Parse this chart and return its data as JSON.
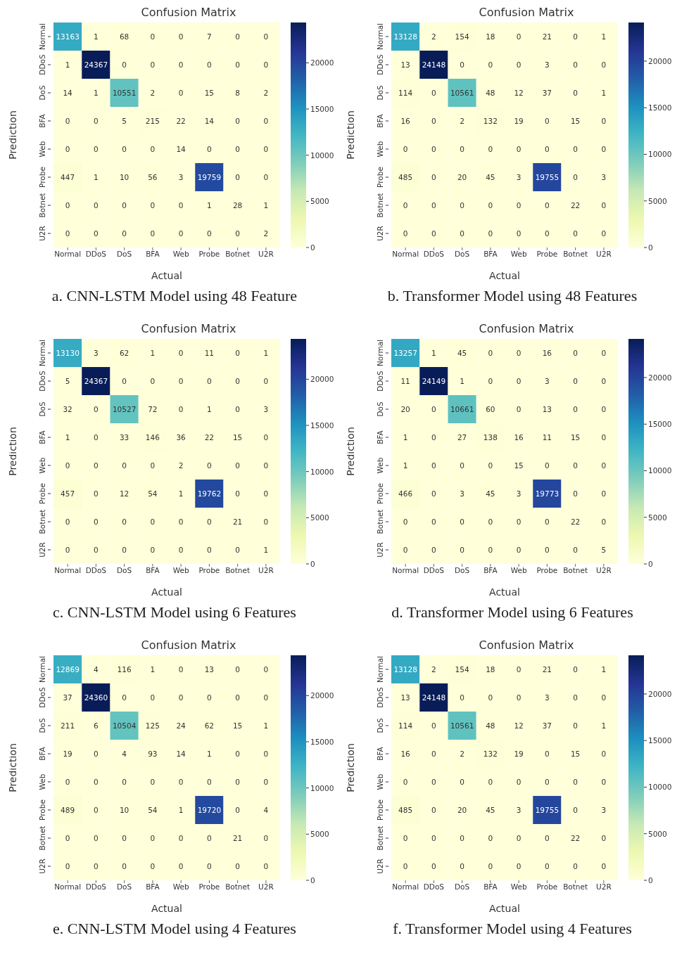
{
  "chart_data": [
    {
      "type": "heatmap",
      "title": "Confusion Matrix",
      "xlabel": "Actual",
      "ylabel": "Prediction",
      "categories": [
        "Normal",
        "DDoS",
        "DoS",
        "BFA",
        "Web",
        "Probe",
        "Botnet",
        "U2R"
      ],
      "y_categories": [
        "Normal",
        "DDoS",
        "DoS",
        "BFA",
        "Web",
        "Probe",
        "Botnet",
        "U2R"
      ],
      "cells": [
        [
          13163,
          1,
          68,
          0,
          0,
          7,
          0,
          0
        ],
        [
          1,
          24367,
          0,
          0,
          0,
          0,
          0,
          0
        ],
        [
          14,
          1,
          10551,
          2,
          0,
          15,
          8,
          2
        ],
        [
          0,
          0,
          5,
          215,
          22,
          14,
          0,
          0
        ],
        [
          0,
          0,
          0,
          0,
          14,
          0,
          0,
          0
        ],
        [
          447,
          1,
          10,
          56,
          3,
          19759,
          0,
          0
        ],
        [
          0,
          0,
          0,
          0,
          0,
          1,
          28,
          1
        ],
        [
          0,
          0,
          0,
          0,
          0,
          0,
          0,
          2
        ]
      ],
      "clim": [
        0,
        24367
      ],
      "cticks": [
        0,
        5000,
        10000,
        15000,
        20000
      ],
      "data_labels": true,
      "annotations": [
        "a. CNN-LSTM Model using 48 Feature"
      ]
    },
    {
      "type": "heatmap",
      "title": "Confusion Matrix",
      "xlabel": "Actual",
      "ylabel": "Prediction",
      "categories": [
        "Normal",
        "DDoS",
        "DoS",
        "BFA",
        "Web",
        "Probe",
        "Botnet",
        "U2R"
      ],
      "y_categories": [
        "Normal",
        "DDoS",
        "DoS",
        "BFA",
        "Web",
        "Probe",
        "Botnet",
        "U2R"
      ],
      "cells": [
        [
          13128,
          2,
          154,
          18,
          0,
          21,
          0,
          1
        ],
        [
          13,
          24148,
          0,
          0,
          0,
          3,
          0,
          0
        ],
        [
          114,
          0,
          10561,
          48,
          12,
          37,
          0,
          1
        ],
        [
          16,
          0,
          2,
          132,
          19,
          0,
          15,
          0
        ],
        [
          0,
          0,
          0,
          0,
          0,
          0,
          0,
          0
        ],
        [
          485,
          0,
          20,
          45,
          3,
          19755,
          0,
          3
        ],
        [
          0,
          0,
          0,
          0,
          0,
          0,
          22,
          0
        ],
        [
          0,
          0,
          0,
          0,
          0,
          0,
          0,
          0
        ]
      ],
      "clim": [
        0,
        24148
      ],
      "cticks": [
        0,
        5000,
        10000,
        15000,
        20000
      ],
      "data_labels": true,
      "annotations": [
        "b. Transformer Model using 48 Features"
      ]
    },
    {
      "type": "heatmap",
      "title": "Confusion Matrix",
      "xlabel": "Actual",
      "ylabel": "Prediction",
      "categories": [
        "Normal",
        "DDoS",
        "DoS",
        "BFA",
        "Web",
        "Probe",
        "Botnet",
        "U2R"
      ],
      "y_categories": [
        "Normal",
        "DDoS",
        "DoS",
        "BFA",
        "Web",
        "Probe",
        "Botnet",
        "U2R"
      ],
      "cells": [
        [
          13130,
          3,
          62,
          1,
          0,
          11,
          0,
          1
        ],
        [
          5,
          24367,
          0,
          0,
          0,
          0,
          0,
          0
        ],
        [
          32,
          0,
          10527,
          72,
          0,
          1,
          0,
          3
        ],
        [
          1,
          0,
          33,
          146,
          36,
          22,
          15,
          0
        ],
        [
          0,
          0,
          0,
          0,
          2,
          0,
          0,
          0
        ],
        [
          457,
          0,
          12,
          54,
          1,
          19762,
          0,
          0
        ],
        [
          0,
          0,
          0,
          0,
          0,
          0,
          21,
          0
        ],
        [
          0,
          0,
          0,
          0,
          0,
          0,
          0,
          1
        ]
      ],
      "clim": [
        0,
        24367
      ],
      "cticks": [
        0,
        5000,
        10000,
        15000,
        20000
      ],
      "data_labels": true,
      "annotations": [
        "c. CNN-LSTM Model using 6 Features"
      ]
    },
    {
      "type": "heatmap",
      "title": "Confusion Matrix",
      "xlabel": "Actual",
      "ylabel": "Prediction",
      "categories": [
        "Normal",
        "DDoS",
        "DoS",
        "BFA",
        "Web",
        "Probe",
        "Botnet",
        "U2R"
      ],
      "y_categories": [
        "Normal",
        "DDoS",
        "DoS",
        "BFA",
        "Web",
        "Probe",
        "Botnet",
        "U2R"
      ],
      "cells": [
        [
          13257,
          1,
          45,
          0,
          0,
          16,
          0,
          0
        ],
        [
          11,
          24149,
          1,
          0,
          0,
          3,
          0,
          0
        ],
        [
          20,
          0,
          10661,
          60,
          0,
          13,
          0,
          0
        ],
        [
          1,
          0,
          27,
          138,
          16,
          11,
          15,
          0
        ],
        [
          1,
          0,
          0,
          0,
          15,
          0,
          0,
          0
        ],
        [
          466,
          0,
          3,
          45,
          3,
          19773,
          0,
          0
        ],
        [
          0,
          0,
          0,
          0,
          0,
          0,
          22,
          0
        ],
        [
          0,
          0,
          0,
          0,
          0,
          0,
          0,
          5
        ]
      ],
      "clim": [
        0,
        24149
      ],
      "cticks": [
        0,
        5000,
        10000,
        15000,
        20000
      ],
      "data_labels": true,
      "annotations": [
        "d. Transformer Model using 6 Features"
      ]
    },
    {
      "type": "heatmap",
      "title": "Confusion Matrix",
      "xlabel": "Actual",
      "ylabel": "Prediction",
      "categories": [
        "Normal",
        "DDoS",
        "DoS",
        "BFA",
        "Web",
        "Probe",
        "Botnet",
        "U2R"
      ],
      "y_categories": [
        "Normal",
        "DDoS",
        "DoS",
        "BFA",
        "Web",
        "Probe",
        "Botnet",
        "U2R"
      ],
      "cells": [
        [
          12869,
          4,
          116,
          1,
          0,
          13,
          0,
          0
        ],
        [
          37,
          24360,
          0,
          0,
          0,
          0,
          0,
          0
        ],
        [
          211,
          6,
          10504,
          125,
          24,
          62,
          15,
          1
        ],
        [
          19,
          0,
          4,
          93,
          14,
          1,
          0,
          0
        ],
        [
          0,
          0,
          0,
          0,
          0,
          0,
          0,
          0
        ],
        [
          489,
          0,
          10,
          54,
          1,
          19720,
          0,
          4
        ],
        [
          0,
          0,
          0,
          0,
          0,
          0,
          21,
          0
        ],
        [
          0,
          0,
          0,
          0,
          0,
          0,
          0,
          0
        ]
      ],
      "clim": [
        0,
        24360
      ],
      "cticks": [
        0,
        5000,
        10000,
        15000,
        20000
      ],
      "data_labels": true,
      "annotations": [
        "e. CNN-LSTM Model using 4 Features"
      ]
    },
    {
      "type": "heatmap",
      "title": "Confusion Matrix",
      "xlabel": "Actual",
      "ylabel": "Prediction",
      "categories": [
        "Normal",
        "DDoS",
        "DoS",
        "BFA",
        "Web",
        "Probe",
        "Botnet",
        "U2R"
      ],
      "y_categories": [
        "Normal",
        "DDoS",
        "DoS",
        "BFA",
        "Web",
        "Probe",
        "Botnet",
        "U2R"
      ],
      "cells": [
        [
          13128,
          2,
          154,
          18,
          0,
          21,
          0,
          1
        ],
        [
          13,
          24148,
          0,
          0,
          0,
          3,
          0,
          0
        ],
        [
          114,
          0,
          10561,
          48,
          12,
          37,
          0,
          1
        ],
        [
          16,
          0,
          2,
          132,
          19,
          0,
          15,
          0
        ],
        [
          0,
          0,
          0,
          0,
          0,
          0,
          0,
          0
        ],
        [
          485,
          0,
          20,
          45,
          3,
          19755,
          0,
          3
        ],
        [
          0,
          0,
          0,
          0,
          0,
          0,
          22,
          0
        ],
        [
          0,
          0,
          0,
          0,
          0,
          0,
          0,
          0
        ]
      ],
      "clim": [
        0,
        24148
      ],
      "cticks": [
        0,
        5000,
        10000,
        15000,
        20000
      ],
      "data_labels": true,
      "annotations": [
        "f. Transformer Model using 4 Features"
      ]
    }
  ]
}
